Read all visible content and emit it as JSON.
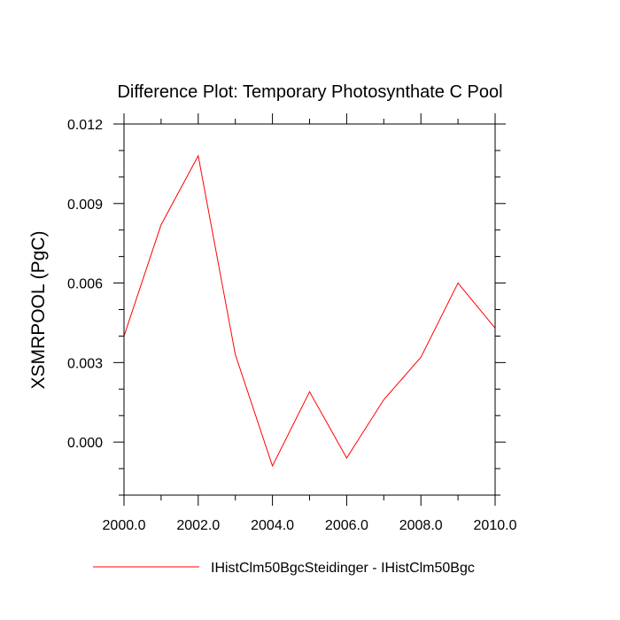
{
  "chart_data": {
    "type": "line",
    "title": "Difference Plot: Temporary Photosynthate C Pool",
    "xlabel": "",
    "ylabel": "XSMRPOOL  (PgC)",
    "xlim": [
      2000,
      2010
    ],
    "ylim": [
      -0.002,
      0.012
    ],
    "x_ticks": [
      2000,
      2002,
      2004,
      2006,
      2008,
      2010
    ],
    "x_tick_labels": [
      "2000.0",
      "2002.0",
      "2004.0",
      "2006.0",
      "2008.0",
      "2010.0"
    ],
    "y_ticks": [
      0.0,
      0.003,
      0.006,
      0.009,
      0.012
    ],
    "y_tick_labels": [
      "0.000",
      "0.003",
      "0.006",
      "0.009",
      "0.012"
    ],
    "grid": false,
    "legend_position": "bottom",
    "series": [
      {
        "name": "IHistClm50BgcSteidinger - IHistClm50Bgc",
        "color": "#ff0000",
        "x": [
          2000,
          2001,
          2002,
          2003,
          2004,
          2005,
          2006,
          2007,
          2008,
          2009,
          2010
        ],
        "y": [
          0.004,
          0.0082,
          0.0108,
          0.0033,
          -0.0009,
          0.0019,
          -0.0006,
          0.0016,
          0.0032,
          0.006,
          0.0043
        ]
      }
    ]
  }
}
